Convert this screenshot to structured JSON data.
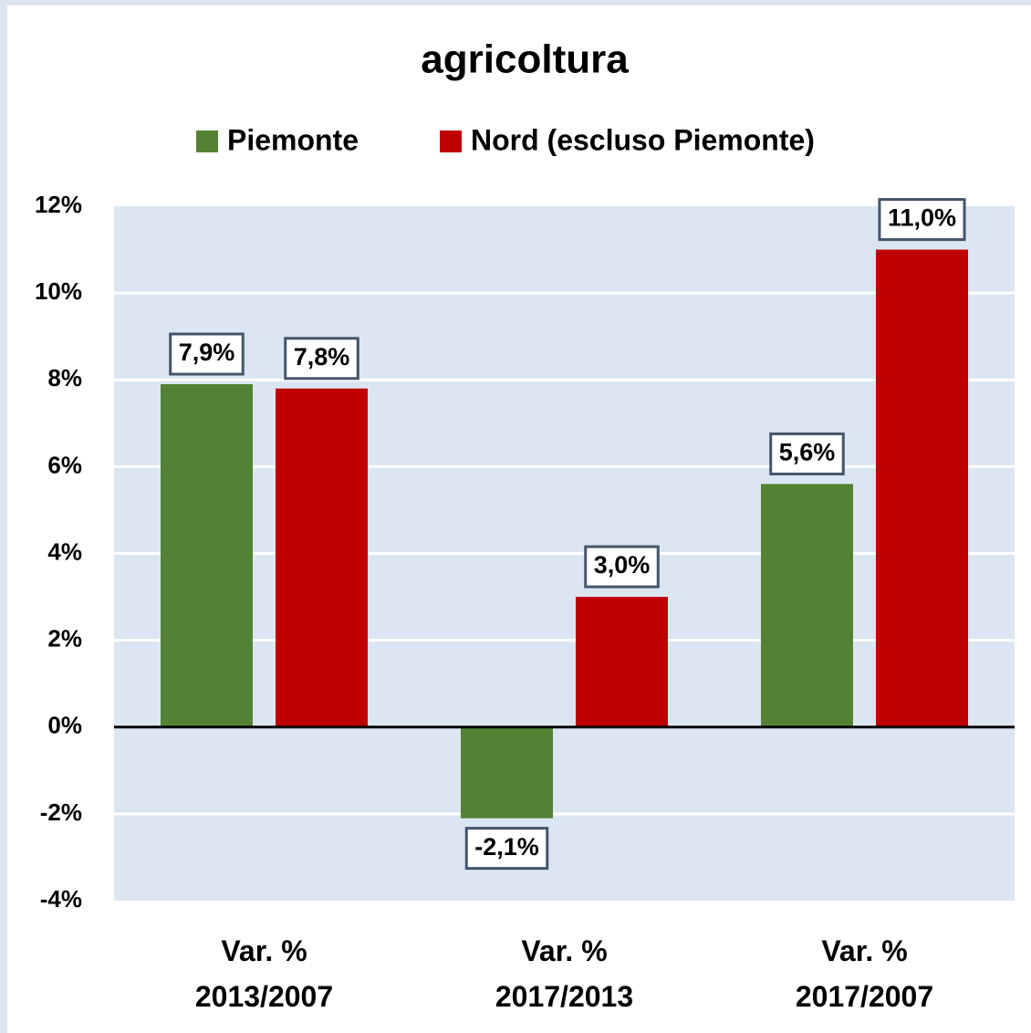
{
  "chart_data": {
    "type": "bar",
    "title": "agricoltura",
    "categories": [
      "Var. %\n2013/2007",
      "Var. %\n2017/2013",
      "Var. %\n2017/2007"
    ],
    "series": [
      {
        "name": "Piemonte",
        "color": "#548235",
        "values": [
          7.9,
          -2.1,
          5.6
        ],
        "value_labels": [
          "7,9%",
          "-2,1%",
          "5,6%"
        ]
      },
      {
        "name": "Nord (escluso Piemonte)",
        "color": "#c00000",
        "values": [
          7.8,
          3.0,
          11.0
        ],
        "value_labels": [
          "7,8%",
          "3,0%",
          "11,0%"
        ]
      }
    ],
    "ylim": [
      -4,
      12
    ],
    "yticks": [
      {
        "value": -4,
        "label": "-4%"
      },
      {
        "value": -2,
        "label": "-2%"
      },
      {
        "value": 0,
        "label": "0%"
      },
      {
        "value": 2,
        "label": "2%"
      },
      {
        "value": 4,
        "label": "4%"
      },
      {
        "value": 6,
        "label": "6%"
      },
      {
        "value": 8,
        "label": "8%"
      },
      {
        "value": 10,
        "label": "10%"
      },
      {
        "value": 12,
        "label": "12%"
      }
    ],
    "grid": true,
    "legend": "top"
  }
}
